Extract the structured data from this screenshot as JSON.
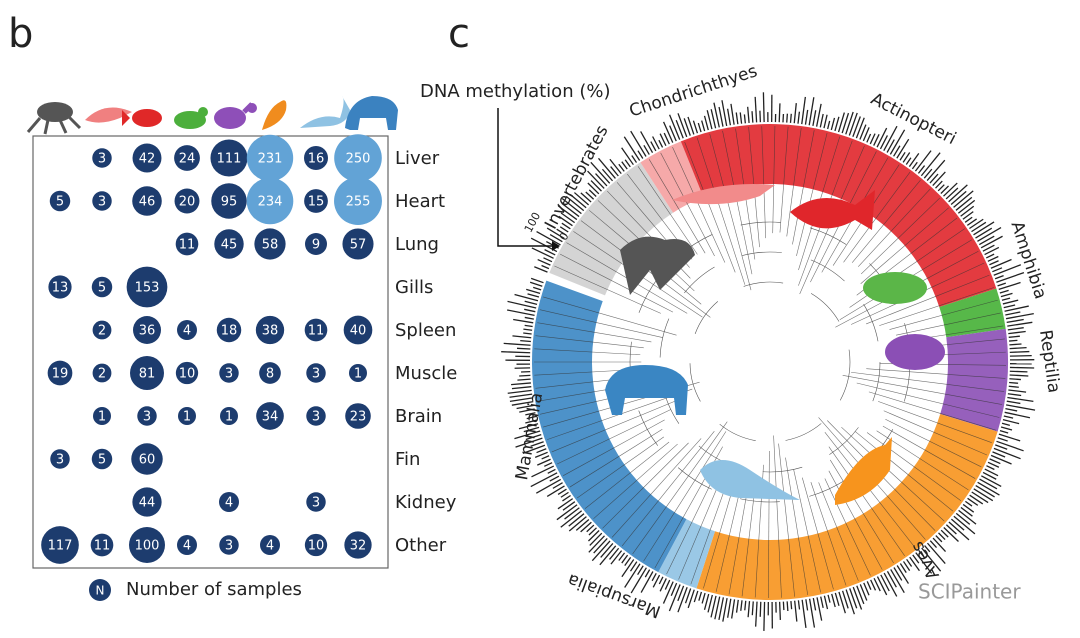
{
  "panel_b": {
    "label": "b",
    "rows": [
      {
        "tissue": "Liver",
        "counts": [
          null,
          3,
          42,
          24,
          111,
          231,
          16,
          250
        ]
      },
      {
        "tissue": "Heart",
        "counts": [
          5,
          3,
          46,
          20,
          95,
          234,
          15,
          255
        ]
      },
      {
        "tissue": "Lung",
        "counts": [
          null,
          null,
          null,
          11,
          45,
          58,
          9,
          57
        ]
      },
      {
        "tissue": "Gills",
        "counts": [
          13,
          5,
          153,
          null,
          null,
          null,
          null,
          null
        ]
      },
      {
        "tissue": "Spleen",
        "counts": [
          null,
          2,
          36,
          4,
          18,
          38,
          11,
          40
        ]
      },
      {
        "tissue": "Muscle",
        "counts": [
          19,
          2,
          81,
          10,
          3,
          8,
          3,
          1
        ]
      },
      {
        "tissue": "Brain",
        "counts": [
          null,
          1,
          3,
          1,
          1,
          34,
          3,
          23
        ]
      },
      {
        "tissue": "Fin",
        "counts": [
          3,
          5,
          60,
          null,
          null,
          null,
          null,
          null
        ]
      },
      {
        "tissue": "Kidney",
        "counts": [
          null,
          null,
          44,
          null,
          4,
          null,
          3,
          null
        ]
      },
      {
        "tissue": "Other",
        "counts": [
          117,
          11,
          100,
          4,
          3,
          4,
          10,
          32
        ]
      }
    ],
    "colors": {
      "low": "#1d3c6e",
      "high": "#62a3d6"
    },
    "legend_symbol": "N",
    "legend_text": "Number of samples"
  },
  "panel_c": {
    "label": "c",
    "axis_title": "DNA methylation (%)",
    "scale_max": 100,
    "scale_min": 0,
    "clades": [
      "Invertebrates",
      "Chondrichthyes",
      "Actinopteri",
      "Amphibia",
      "Reptilia",
      "Aves",
      "Marsupialia",
      "Mammalia"
    ]
  },
  "watermark": "SCIPainter"
}
